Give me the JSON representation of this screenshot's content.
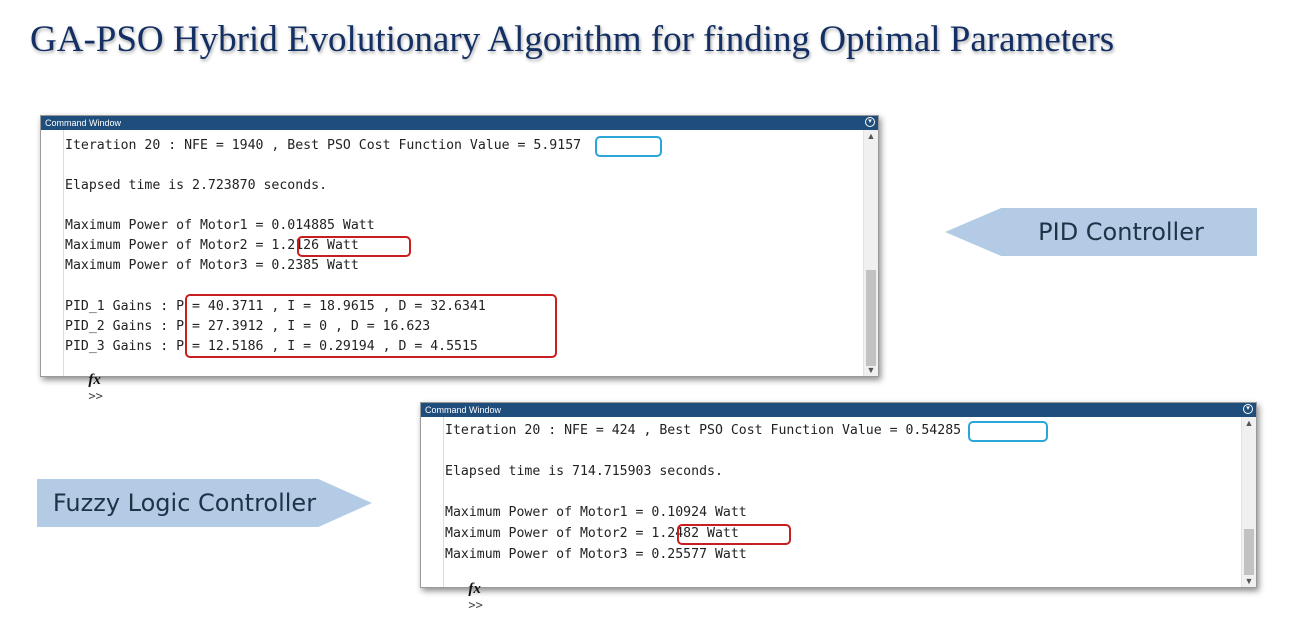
{
  "title": "GA-PSO Hybrid Evolutionary Algorithm for finding Optimal Parameters",
  "pid_window": {
    "window_title": "Command Window",
    "lines": [
      "Iteration 20 : NFE = 1940 , Best PSO Cost Function Value = 5.9157",
      "Elapsed time is 2.723870 seconds.",
      "Maximum Power of Motor1 = 0.014885 Watt",
      "Maximum Power of Motor2 = 1.2126 Watt",
      "Maximum Power of Motor3 = 0.2385 Watt",
      "PID_1 Gains : P = 40.3711 , I = 18.9615 , D = 32.6341",
      "PID_2 Gains : P = 27.3912 , I = 0 , D = 16.623",
      "PID_3 Gains : P = 12.5186 , I = 0.29194 , D = 4.5515"
    ],
    "prompt": ">>"
  },
  "fuzzy_window": {
    "window_title": "Command Window",
    "lines": [
      "Iteration 20 : NFE = 424 , Best PSO Cost Function Value = 0.54285",
      "Elapsed time is 714.715903 seconds.",
      "Maximum Power of Motor1 = 0.10924 Watt",
      "Maximum Power of Motor2 = 1.2482 Watt",
      "Maximum Power of Motor3 = 0.25577 Watt"
    ],
    "prompt": ">>"
  },
  "callouts": {
    "pid": "PID Controller",
    "fuzzy": "Fuzzy Logic Controller"
  },
  "colors": {
    "title": "#132f63",
    "titlebar": "#1f4e7c",
    "highlight_blue": "#2aa7d8",
    "highlight_red": "#c81e1e",
    "callout": "#b3cbe5"
  },
  "icons": {
    "function": "fx-icon",
    "window_menu": "chevron-down-circle-icon"
  }
}
